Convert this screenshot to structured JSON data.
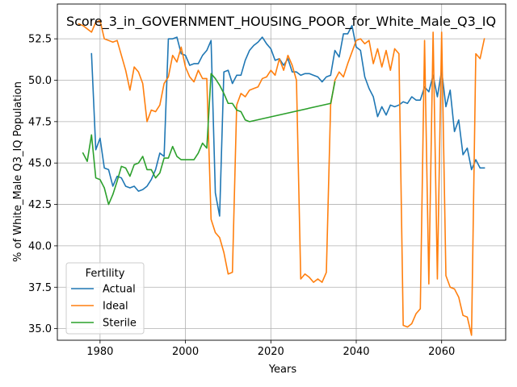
{
  "chart_data": {
    "type": "line",
    "title": "Score_3_in_GOVERNMENT_HOUSING_POOR_for_White_Male_Q3_IQ",
    "xlabel": "Years",
    "ylabel": "% of White_Male Q3_IQ Population",
    "xlim": [
      1970,
      2075
    ],
    "ylim": [
      34.3,
      54.6
    ],
    "xticks": [
      1980,
      2000,
      2020,
      2040,
      2060
    ],
    "yticks": [
      35.0,
      37.5,
      40.0,
      42.5,
      45.0,
      47.5,
      50.0,
      52.5
    ],
    "xtick_labels": [
      "1980",
      "2000",
      "2020",
      "2040",
      "2060"
    ],
    "ytick_labels": [
      "35.0",
      "37.5",
      "40.0",
      "42.5",
      "45.0",
      "47.5",
      "50.0",
      "52.5"
    ],
    "grid": true,
    "legend": {
      "title": "Fertility",
      "placement": "lower-left"
    },
    "series": [
      {
        "name": "Actual",
        "color": "#1f77b4",
        "x": [
          1978,
          1979,
          1980,
          1981,
          1982,
          1983,
          1984,
          1985,
          1986,
          1987,
          1988,
          1989,
          1990,
          1991,
          1992,
          1993,
          1994,
          1995,
          1996,
          1997,
          1998,
          1999,
          2000,
          2001,
          2002,
          2003,
          2004,
          2005,
          2006,
          2007,
          2008,
          2009,
          2010,
          2011,
          2012,
          2013,
          2014,
          2015,
          2016,
          2017,
          2018,
          2019,
          2020,
          2021,
          2022,
          2023,
          2024,
          2025,
          2026,
          2027,
          2028,
          2029,
          2030,
          2031,
          2032,
          2033,
          2034,
          2035,
          2036,
          2037,
          2038,
          2039,
          2040,
          2041,
          2042,
          2043,
          2044,
          2045,
          2046,
          2047,
          2048,
          2049,
          2050,
          2051,
          2052,
          2053,
          2054,
          2055,
          2056,
          2057,
          2058,
          2059,
          2060,
          2061,
          2062,
          2063,
          2064,
          2065,
          2066,
          2067,
          2068,
          2069,
          2070
        ],
        "y": [
          51.6,
          45.8,
          46.5,
          44.7,
          44.6,
          43.6,
          44.2,
          44.1,
          43.6,
          43.5,
          43.6,
          43.3,
          43.4,
          43.6,
          44.0,
          44.6,
          45.6,
          45.4,
          52.5,
          52.5,
          52.6,
          51.6,
          51.5,
          50.9,
          51.0,
          51.0,
          51.5,
          51.8,
          52.4,
          43.2,
          41.8,
          50.5,
          50.6,
          49.8,
          50.3,
          50.3,
          51.2,
          51.8,
          52.1,
          52.3,
          52.6,
          52.2,
          51.9,
          51.2,
          51.3,
          50.9,
          51.3,
          50.5,
          50.5,
          50.3,
          50.4,
          50.4,
          50.3,
          50.2,
          49.9,
          50.2,
          50.3,
          51.8,
          51.4,
          52.8,
          52.8,
          53.3,
          52.0,
          51.8,
          50.2,
          49.5,
          49.0,
          47.8,
          48.4,
          47.9,
          48.5,
          48.4,
          48.5,
          48.7,
          48.6,
          49.0,
          48.8,
          48.8,
          49.6,
          49.3,
          50.3,
          49.0,
          50.6,
          48.4,
          49.4,
          46.9,
          47.6,
          45.5,
          45.9,
          44.6,
          45.2,
          44.7,
          44.7
        ]
      },
      {
        "name": "Ideal",
        "color": "#ff7f0e",
        "x": [
          1975,
          1976,
          1977,
          1978,
          1979,
          1980,
          1981,
          1982,
          1983,
          1984,
          1985,
          1986,
          1987,
          1988,
          1989,
          1990,
          1991,
          1992,
          1993,
          1994,
          1995,
          1996,
          1997,
          1998,
          1999,
          2000,
          2001,
          2002,
          2003,
          2004,
          2005,
          2006,
          2007,
          2008,
          2009,
          2010,
          2011,
          2012,
          2013,
          2014,
          2015,
          2016,
          2017,
          2018,
          2019,
          2020,
          2021,
          2022,
          2023,
          2024,
          2025,
          2026,
          2027,
          2028,
          2029,
          2030,
          2031,
          2032,
          2033,
          2034,
          2035,
          2036,
          2037,
          2038,
          2039,
          2040,
          2041,
          2042,
          2043,
          2044,
          2045,
          2046,
          2047,
          2048,
          2049,
          2050,
          2051,
          2052,
          2053,
          2054,
          2055,
          2056,
          2057,
          2058,
          2059,
          2060,
          2061,
          2062,
          2063,
          2064,
          2065,
          2066,
          2067,
          2068,
          2069,
          2070
        ],
        "y": [
          53.4,
          53.3,
          53.1,
          52.9,
          53.5,
          53.6,
          52.5,
          52.4,
          52.3,
          52.4,
          51.5,
          50.6,
          49.4,
          50.8,
          50.5,
          49.8,
          47.5,
          48.2,
          48.1,
          48.5,
          49.8,
          50.2,
          51.5,
          51.1,
          52.0,
          50.8,
          50.2,
          49.9,
          50.6,
          50.1,
          50.1,
          41.6,
          40.8,
          40.5,
          39.6,
          38.3,
          38.4,
          48.5,
          49.2,
          49.0,
          49.4,
          49.5,
          49.6,
          50.1,
          50.2,
          50.6,
          50.3,
          51.3,
          50.6,
          51.5,
          50.9,
          50.0,
          38.0,
          38.3,
          38.1,
          37.8,
          38.0,
          37.8,
          38.4,
          48.5,
          50.0,
          50.5,
          50.2,
          51.0,
          51.7,
          52.4,
          52.5,
          52.2,
          52.4,
          51.0,
          51.9,
          50.8,
          51.8,
          50.6,
          51.9,
          51.6,
          35.2,
          35.1,
          35.3,
          35.9,
          36.2,
          52.4,
          37.7,
          52.9,
          38.0,
          52.9,
          38.2,
          37.5,
          37.4,
          36.9,
          35.8,
          35.7,
          34.6,
          51.6,
          51.3,
          52.5
        ]
      },
      {
        "name": "Sterile",
        "color": "#2ca02c",
        "x": [
          1976,
          1977,
          1978,
          1979,
          1980,
          1981,
          1982,
          1983,
          1984,
          1985,
          1986,
          1987,
          1988,
          1989,
          1990,
          1991,
          1992,
          1993,
          1994,
          1995,
          1996,
          1997,
          1998,
          1999,
          2000,
          2001,
          2002,
          2003,
          2004,
          2005,
          2006,
          2007,
          2008,
          2009,
          2010,
          2011,
          2012,
          2013,
          2014,
          2015,
          2034,
          2035
        ],
        "y": [
          45.6,
          45.1,
          46.7,
          44.1,
          44.0,
          43.5,
          42.5,
          43.1,
          43.9,
          44.8,
          44.7,
          44.2,
          44.9,
          45.0,
          45.4,
          44.6,
          44.6,
          44.1,
          44.4,
          45.3,
          45.3,
          46.0,
          45.4,
          45.2,
          45.2,
          45.2,
          45.2,
          45.6,
          46.2,
          45.9,
          50.4,
          50.1,
          49.7,
          49.2,
          48.6,
          48.6,
          48.2,
          48.1,
          47.6,
          47.5,
          48.6,
          49.9
        ]
      }
    ]
  }
}
